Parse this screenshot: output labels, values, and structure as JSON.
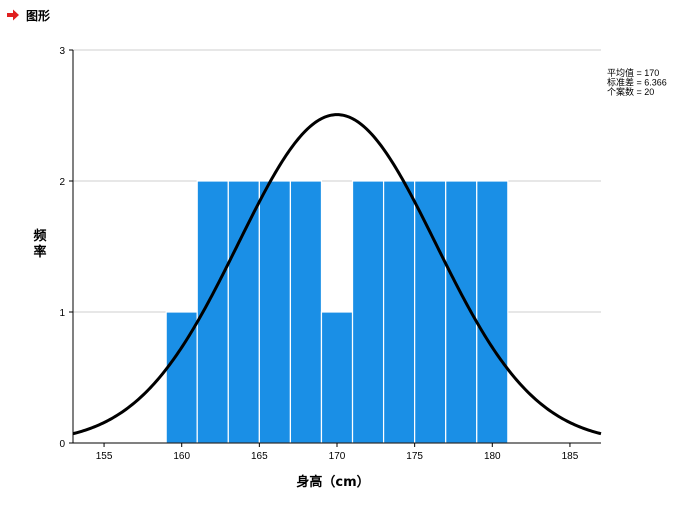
{
  "header": {
    "title": "图形",
    "icon": "red-right-arrow-icon",
    "icon_color": "#e02020"
  },
  "chart_data": {
    "type": "bar",
    "subtype": "histogram",
    "title": "",
    "xlabel": "身高（cm）",
    "ylabel": "频率",
    "xlim": [
      153,
      187
    ],
    "ylim": [
      0,
      3
    ],
    "x_ticks": [
      155,
      160,
      165,
      170,
      175,
      180,
      185
    ],
    "y_ticks": [
      0,
      1,
      2,
      3
    ],
    "bin_width": 2,
    "bins": [
      {
        "start": 159,
        "end": 161,
        "count": 1
      },
      {
        "start": 161,
        "end": 163,
        "count": 2
      },
      {
        "start": 163,
        "end": 165,
        "count": 2
      },
      {
        "start": 165,
        "end": 167,
        "count": 2
      },
      {
        "start": 167,
        "end": 169,
        "count": 2
      },
      {
        "start": 169,
        "end": 171,
        "count": 1
      },
      {
        "start": 171,
        "end": 173,
        "count": 2
      },
      {
        "start": 173,
        "end": 175,
        "count": 2
      },
      {
        "start": 175,
        "end": 177,
        "count": 2
      },
      {
        "start": 177,
        "end": 179,
        "count": 2
      },
      {
        "start": 179,
        "end": 181,
        "count": 2
      }
    ],
    "normal_curve": {
      "mean": 170,
      "sd": 6.366,
      "n": 20
    },
    "stats_lines": [
      "平均值 = 170",
      "标准差 = 6.366",
      "个案数 = 20"
    ],
    "bar_color": "#1a8fe6",
    "curve_color": "#000000",
    "grid": "horizontal"
  }
}
